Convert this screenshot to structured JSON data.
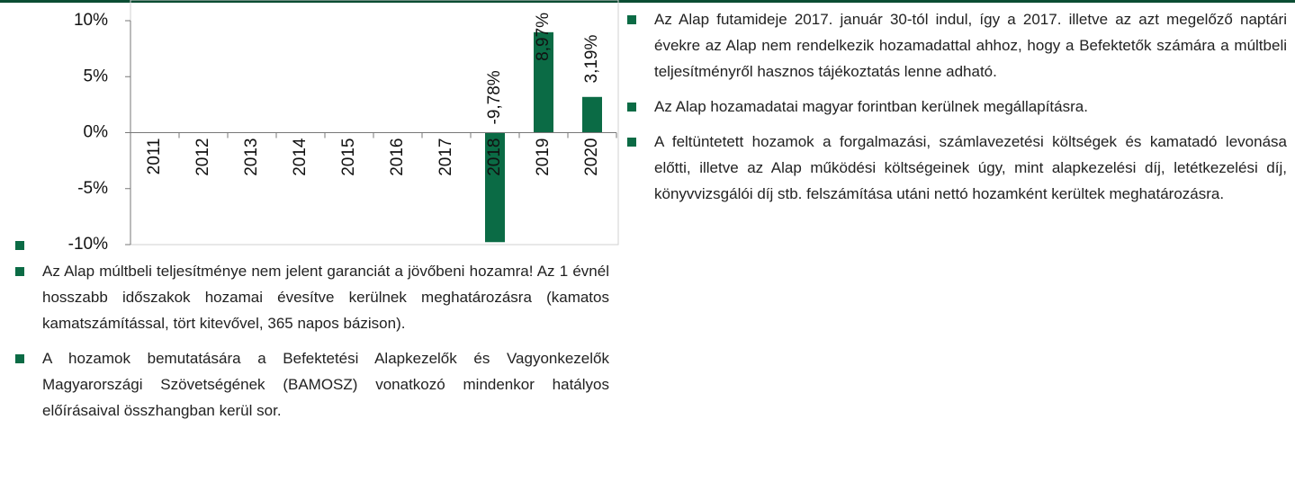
{
  "chart_data": {
    "type": "bar",
    "categories": [
      "2011",
      "2012",
      "2013",
      "2014",
      "2015",
      "2016",
      "2017",
      "2018",
      "2019",
      "2020"
    ],
    "values": [
      null,
      null,
      null,
      null,
      null,
      null,
      null,
      -9.78,
      8.97,
      3.19
    ],
    "value_labels": [
      null,
      null,
      null,
      null,
      null,
      null,
      null,
      "-9,78%",
      "8,97%",
      "3,19%"
    ],
    "color": "#0b6b45",
    "ylim": [
      -10,
      10
    ],
    "yticks": [
      {
        "value": -10,
        "label": "-10%"
      },
      {
        "value": -5,
        "label": "-5%"
      },
      {
        "value": 0,
        "label": "0%"
      },
      {
        "value": 5,
        "label": "5%"
      },
      {
        "value": 10,
        "label": "10%"
      }
    ]
  },
  "notes_left": [
    "Az Alap múltbeli teljesítménye nem jelent garanciát a jövőbeni hozamra! Az 1 évnél hosszabb időszakok hozamai évesítve kerülnek meghatározásra (kamatos kamatszámítással, tört kitevővel, 365 napos bázison).",
    "A hozamok bemutatására a Befektetési Alapkezelők és Vagyonkezelők Magyarországi Szövetségének (BAMOSZ) vonatkozó mindenkor hatályos előírásaival összhangban kerül sor."
  ],
  "notes_right": [
    "Az Alap futamideje 2017. január 30-tól indul, így a 2017. illetve az azt megelőző naptári évekre az Alap nem rendelkezik hozamadattal ahhoz, hogy a Befektetők számára a múltbeli teljesítményről hasznos tájékoztatás lenne adható.",
    "Az Alap hozamadatai magyar forintban kerülnek megállapításra.",
    "A feltüntetett hozamok a forgalmazási, számlavezetési költségek és kamatadó levonása előtti, illetve az Alap működési költségeinek úgy, mint alapkezelési díj, letétkezelési díj, könyvvizsgálói díj stb. felszámítása utáni nettó hozamként kerültek meghatározásra."
  ]
}
